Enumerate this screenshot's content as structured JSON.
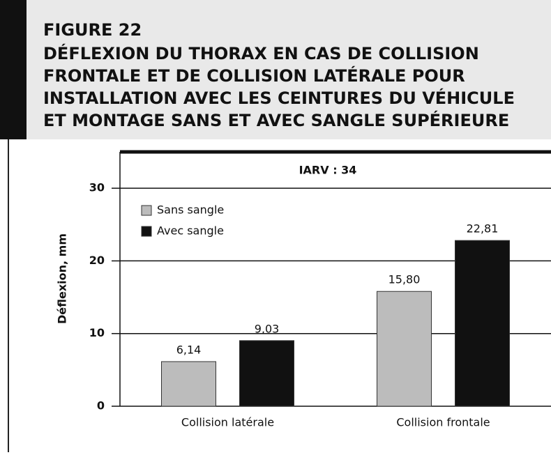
{
  "chart_data": {
    "type": "bar",
    "figure_label": "FIGURE 22",
    "title": [
      "DÉFLEXION DU THORAX EN CAS DE COLLISION",
      "FRONTALE ET DE COLLISION LATÉRALE POUR",
      "INSTALLATION AVEC LES CEINTURES DU VÉHICULE",
      "ET MONTAGE SANS ET AVEC SANGLE SUPÉRIEURE"
    ],
    "annotation": "IARV : 34",
    "ylabel": "Déflexion, mm",
    "categories": [
      "Collision latérale",
      "Collision frontale"
    ],
    "series": [
      {
        "name": "Sans sangle",
        "color": "#bcbcbc",
        "values": [
          6.14,
          15.8
        ],
        "value_labels": [
          "6,14",
          "15,80"
        ]
      },
      {
        "name": "Avec sangle",
        "color": "#111111",
        "values": [
          9.03,
          22.81
        ],
        "value_labels": [
          "9,03",
          "22,81"
        ]
      }
    ],
    "ylim": [
      0,
      35
    ],
    "yticks": [
      0,
      10,
      20,
      30
    ],
    "grid": true,
    "legend": "upper left"
  }
}
